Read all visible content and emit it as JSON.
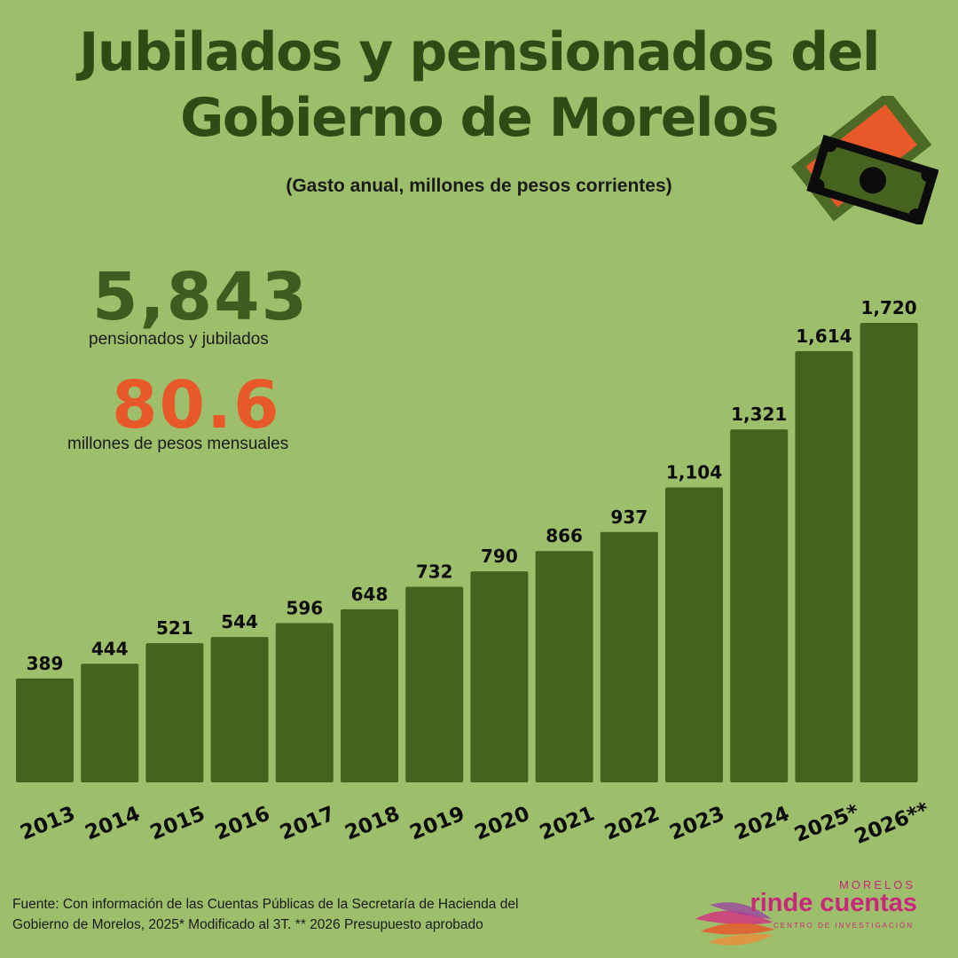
{
  "title_line1": "Jubilados y pensionados del",
  "title_line2": "Gobierno de Morelos",
  "subtitle": "(Gasto anual, millones de pesos corrientes)",
  "stat_pensioners_value": "5,843",
  "stat_pensioners_label": "pensionados y jubilados",
  "stat_monthly_value": "80.6",
  "stat_monthly_label": "millones de pesos mensuales",
  "source_line1": "Fuente: Con información de las Cuentas Públicas de la  Secretaría de Hacienda del",
  "source_line2": "Gobierno de Morelos, 2025* Modificado al 3T. ** 2026 Presupuesto aprobado",
  "logo": {
    "top": "MORELOS",
    "name": "rinde cuentas",
    "sub": "CENTRO DE INVESTIGACIÓN"
  },
  "colors": {
    "background": "#9dbf6b",
    "bar": "#45621f",
    "title": "#2f4a14",
    "accent_orange": "#e8592a",
    "brand_pink": "#c8287a"
  },
  "chart_data": {
    "type": "bar",
    "categories": [
      "2013",
      "2014",
      "2015",
      "2016",
      "2017",
      "2018",
      "2019",
      "2020",
      "2021",
      "2022",
      "2023",
      "2024",
      "2025*",
      "2026**"
    ],
    "values": [
      389,
      444,
      521,
      544,
      596,
      648,
      732,
      790,
      866,
      937,
      1104,
      1321,
      1614,
      1720
    ],
    "value_labels": [
      "389",
      "444",
      "521",
      "544",
      "596",
      "648",
      "732",
      "790",
      "866",
      "937",
      "1,104",
      "1,321",
      "1,614",
      "1,720"
    ],
    "ylim": [
      0,
      1720
    ],
    "grid": false,
    "legend": "none"
  }
}
